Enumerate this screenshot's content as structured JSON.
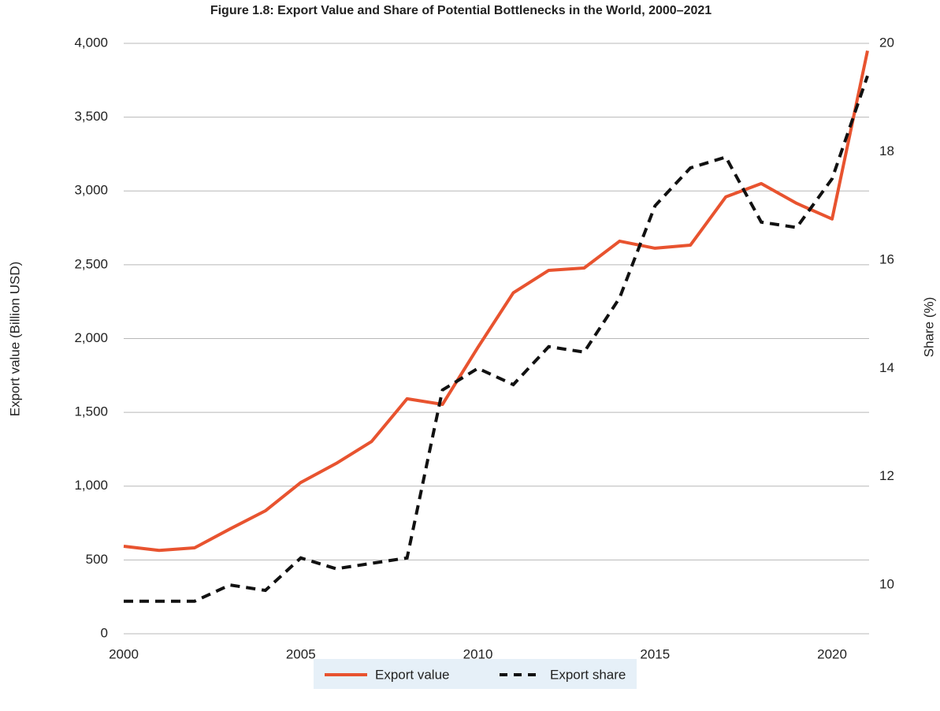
{
  "chart_data": {
    "type": "line",
    "title": "Figure 1.8: Export Value and Share of Potential Bottlenecks in the World, 2000–2021",
    "y_label": "Export value (Billion USD)",
    "y2_label": "Share (%)",
    "x": [
      2000,
      2001,
      2002,
      2003,
      2004,
      2005,
      2006,
      2007,
      2008,
      2009,
      2010,
      2011,
      2012,
      2013,
      2014,
      2015,
      2016,
      2017,
      2018,
      2019,
      2020,
      2021
    ],
    "xlim": [
      2000,
      2021
    ],
    "xticks": [
      2000,
      2005,
      2010,
      2015,
      2020
    ],
    "ylim": [
      0,
      4000
    ],
    "yticks": [
      0,
      500,
      {
        "value": 1000,
        "label": "1,000"
      },
      {
        "value": 1500,
        "label": "1,500"
      },
      {
        "value": 2000,
        "label": "2,000"
      },
      {
        "value": 2500,
        "label": "2,500"
      },
      {
        "value": 3000,
        "label": "3,000"
      },
      {
        "value": 3500,
        "label": "3,500"
      },
      {
        "value": 4000,
        "label": "4,000"
      }
    ],
    "y2lim": [
      9.1,
      20
    ],
    "y2ticks": [
      10,
      12,
      14,
      16,
      18,
      20
    ],
    "grid": true,
    "legend": "bottom",
    "series": [
      {
        "name": "Export value",
        "color": "#e8532f",
        "dash": false,
        "values": [
          593,
          565,
          582,
          710,
          833,
          1025,
          1154,
          1303,
          1592,
          1554,
          1940,
          2310,
          2462,
          2478,
          2660,
          2612,
          2633,
          2960,
          3050,
          2916,
          2810,
          3950
        ]
      },
      {
        "name": "Export share",
        "color": "#111111",
        "dash": true,
        "axis": "y2",
        "values": [
          9.7,
          9.7,
          9.7,
          10.0,
          9.9,
          10.5,
          10.3,
          10.4,
          10.5,
          13.6,
          14.0,
          13.7,
          14.4,
          14.3,
          15.3,
          17.0,
          17.7,
          17.9,
          16.7,
          16.6,
          17.5,
          19.4
        ]
      }
    ]
  }
}
